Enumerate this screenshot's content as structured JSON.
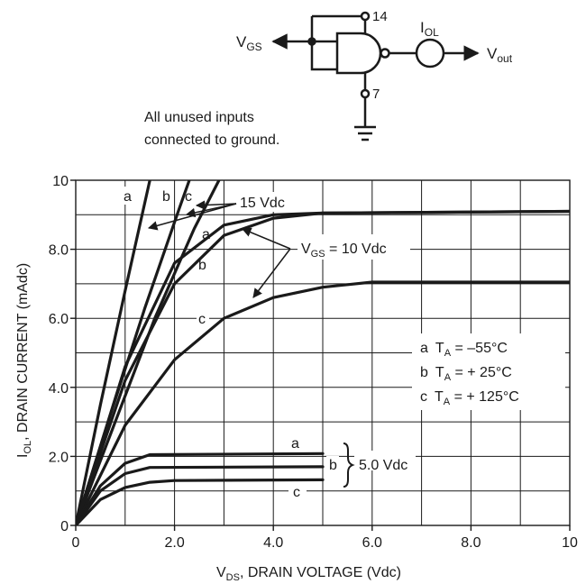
{
  "circuit": {
    "vgs_label": "V",
    "vgs_sub": "GS",
    "pin14": "14",
    "pin7": "7",
    "iol_label": "I",
    "iol_sub": "OL",
    "vout_label": "V",
    "vout_sub": "out",
    "note_line1": "All unused inputs",
    "note_line2": "connected to ground."
  },
  "chart_data": {
    "type": "line",
    "xlabel": "V_DS, DRAIN VOLTAGE (Vdc)",
    "xlabel_main": "V",
    "xlabel_sub": "DS",
    "xlabel_rest": ", DRAIN VOLTAGE (Vdc)",
    "ylabel": "I_OL, DRAIN CURRENT (mAdc)",
    "ylabel_main": "I",
    "ylabel_sub": "OL",
    "ylabel_rest": ", DRAIN CURRENT (mAdc)",
    "xlim": [
      0,
      10
    ],
    "ylim": [
      0,
      10
    ],
    "x_ticks": [
      0,
      2,
      4,
      6,
      8,
      10
    ],
    "x_tick_labels": [
      "0",
      "2.0",
      "4.0",
      "6.0",
      "8.0",
      "10"
    ],
    "y_ticks": [
      0,
      2,
      4,
      6,
      8,
      10
    ],
    "y_tick_labels": [
      "0",
      "2.0",
      "4.0",
      "6.0",
      "8.0",
      "10"
    ],
    "grid": true,
    "series": [
      {
        "name": "15 Vdc a",
        "points": [
          [
            0,
            0
          ],
          [
            0.5,
            3.5
          ],
          [
            1.0,
            6.8
          ],
          [
            1.5,
            10.0
          ]
        ]
      },
      {
        "name": "15 Vdc b",
        "points": [
          [
            0,
            0
          ],
          [
            0.7,
            3.2
          ],
          [
            1.4,
            6.3
          ],
          [
            2.1,
            9.2
          ],
          [
            2.3,
            10.0
          ]
        ]
      },
      {
        "name": "15 Vdc c",
        "points": [
          [
            0,
            0
          ],
          [
            0.8,
            3.0
          ],
          [
            1.6,
            6.0
          ],
          [
            2.4,
            8.6
          ],
          [
            2.9,
            10.0
          ]
        ]
      },
      {
        "name": "10 Vdc a",
        "points": [
          [
            0,
            0
          ],
          [
            1.0,
            4.6
          ],
          [
            2.0,
            7.6
          ],
          [
            3.0,
            8.7
          ],
          [
            4.0,
            9.0
          ],
          [
            5.0,
            9.05
          ],
          [
            10,
            9.1
          ]
        ]
      },
      {
        "name": "10 Vdc b",
        "points": [
          [
            0,
            0
          ],
          [
            1.0,
            4.2
          ],
          [
            2.0,
            7.0
          ],
          [
            3.0,
            8.4
          ],
          [
            4.0,
            8.9
          ],
          [
            5.0,
            9.05
          ],
          [
            10,
            9.1
          ]
        ]
      },
      {
        "name": "10 Vdc c",
        "points": [
          [
            0,
            0
          ],
          [
            1.0,
            2.9
          ],
          [
            2.0,
            4.8
          ],
          [
            3.0,
            6.0
          ],
          [
            4.0,
            6.6
          ],
          [
            5.0,
            6.9
          ],
          [
            6.0,
            7.05
          ],
          [
            10,
            7.05
          ]
        ]
      },
      {
        "name": "5.0 Vdc a",
        "points": [
          [
            0,
            0
          ],
          [
            0.5,
            1.15
          ],
          [
            1.0,
            1.8
          ],
          [
            1.5,
            2.05
          ],
          [
            5.0,
            2.08
          ]
        ]
      },
      {
        "name": "5.0 Vdc b",
        "points": [
          [
            0,
            0
          ],
          [
            0.5,
            1.0
          ],
          [
            1.0,
            1.5
          ],
          [
            1.5,
            1.68
          ],
          [
            5.0,
            1.7
          ]
        ]
      },
      {
        "name": "5.0 Vdc c",
        "points": [
          [
            0,
            0
          ],
          [
            0.5,
            0.75
          ],
          [
            1.0,
            1.1
          ],
          [
            1.5,
            1.25
          ],
          [
            2.0,
            1.3
          ],
          [
            5.0,
            1.32
          ]
        ]
      }
    ],
    "annotations": {
      "curve_a": "a",
      "curve_b": "b",
      "curve_c": "c",
      "vdc15": "15 Vdc",
      "vgs10_main": "V",
      "vgs10_sub": "GS",
      "vgs10_rest": " = 10 Vdc",
      "vdc5": "5.0 Vdc",
      "legend_a_letter": "a",
      "legend_a_rest": " = –55°C",
      "legend_b_letter": "b",
      "legend_b_rest": " = + 25°C",
      "legend_c_letter": "c",
      "legend_c_rest": " = + 125°C",
      "legend_t": "T",
      "legend_t_sub": "A"
    }
  }
}
